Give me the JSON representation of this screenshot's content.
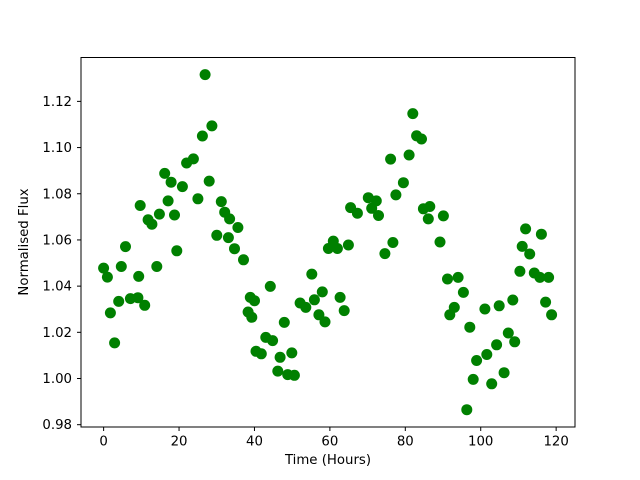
{
  "figure": {
    "background": "#ffffff"
  },
  "chart_data": {
    "type": "scatter",
    "title": "",
    "xlabel": "Time (Hours)",
    "ylabel": "Normalised Flux",
    "marker_color": "#008000",
    "marker_shape": "circle",
    "grid": false,
    "legend_position": "none",
    "xlim": [
      -6.0,
      125.0
    ],
    "ylim": [
      0.979,
      1.139
    ],
    "x_tick_values": [
      0,
      20,
      40,
      60,
      80,
      100,
      120
    ],
    "x_tick_labels": [
      "0",
      "20",
      "40",
      "60",
      "80",
      "100",
      "120"
    ],
    "y_tick_values": [
      0.98,
      1.0,
      1.02,
      1.04,
      1.06,
      1.08,
      1.1,
      1.12
    ],
    "y_tick_labels": [
      "0.98",
      "1.00",
      "1.02",
      "1.04",
      "1.06",
      "1.08",
      "1.10",
      "1.12"
    ],
    "points": [
      [
        0.0,
        1.0478
      ],
      [
        1.0,
        1.0439
      ],
      [
        1.8,
        1.0284
      ],
      [
        2.9,
        1.0154
      ],
      [
        4.0,
        1.0334
      ],
      [
        4.7,
        1.0485
      ],
      [
        5.8,
        1.0571
      ],
      [
        7.1,
        1.0346
      ],
      [
        9.1,
        1.035
      ],
      [
        9.3,
        1.0442
      ],
      [
        9.7,
        1.0749
      ],
      [
        10.9,
        1.0317
      ],
      [
        11.8,
        1.0687
      ],
      [
        12.8,
        1.0668
      ],
      [
        14.1,
        1.0485
      ],
      [
        14.8,
        1.0712
      ],
      [
        16.2,
        1.0888
      ],
      [
        17.1,
        1.0769
      ],
      [
        17.9,
        1.085
      ],
      [
        18.8,
        1.0708
      ],
      [
        19.4,
        1.0553
      ],
      [
        20.9,
        1.0831
      ],
      [
        22.0,
        1.0933
      ],
      [
        23.8,
        1.0951
      ],
      [
        25.0,
        1.0778
      ],
      [
        26.2,
        1.105
      ],
      [
        26.9,
        1.1316
      ],
      [
        28.0,
        1.0855
      ],
      [
        28.7,
        1.1094
      ],
      [
        30.0,
        1.062
      ],
      [
        31.2,
        1.0766
      ],
      [
        32.1,
        1.072
      ],
      [
        33.1,
        1.061
      ],
      [
        33.4,
        1.0691
      ],
      [
        34.7,
        1.0562
      ],
      [
        35.6,
        1.0654
      ],
      [
        37.1,
        1.0514
      ],
      [
        38.3,
        1.0288
      ],
      [
        38.9,
        1.0351
      ],
      [
        39.3,
        1.0265
      ],
      [
        40.0,
        1.0337
      ],
      [
        40.4,
        1.0118
      ],
      [
        41.8,
        1.0107
      ],
      [
        43.0,
        1.0178
      ],
      [
        44.2,
        1.0399
      ],
      [
        44.8,
        1.0164
      ],
      [
        46.2,
        1.0032
      ],
      [
        46.8,
        1.0092
      ],
      [
        47.9,
        1.0243
      ],
      [
        48.8,
        1.0017
      ],
      [
        49.9,
        1.0111
      ],
      [
        50.6,
        1.0014
      ],
      [
        52.1,
        1.0327
      ],
      [
        53.6,
        1.0308
      ],
      [
        55.2,
        1.0452
      ],
      [
        55.9,
        1.0341
      ],
      [
        57.1,
        1.0276
      ],
      [
        58.0,
        1.0375
      ],
      [
        58.7,
        1.0245
      ],
      [
        59.6,
        1.0563
      ],
      [
        60.9,
        1.0595
      ],
      [
        62.0,
        1.0563
      ],
      [
        62.7,
        1.0351
      ],
      [
        63.8,
        1.0294
      ],
      [
        64.9,
        1.0578
      ],
      [
        65.5,
        1.074
      ],
      [
        67.3,
        1.0716
      ],
      [
        70.2,
        1.0783
      ],
      [
        71.1,
        1.0737
      ],
      [
        72.3,
        1.0769
      ],
      [
        72.9,
        1.0706
      ],
      [
        74.6,
        1.0541
      ],
      [
        76.1,
        1.095
      ],
      [
        76.7,
        1.0589
      ],
      [
        77.5,
        1.0795
      ],
      [
        79.5,
        1.0848
      ],
      [
        81.0,
        1.0968
      ],
      [
        82.0,
        1.1147
      ],
      [
        83.0,
        1.1051
      ],
      [
        84.3,
        1.1037
      ],
      [
        84.8,
        1.0735
      ],
      [
        86.1,
        1.0691
      ],
      [
        86.5,
        1.0745
      ],
      [
        89.2,
        1.0591
      ],
      [
        90.1,
        1.0704
      ],
      [
        91.2,
        1.0431
      ],
      [
        91.8,
        1.0276
      ],
      [
        93.0,
        1.0308
      ],
      [
        94.0,
        1.0438
      ],
      [
        95.4,
        1.0373
      ],
      [
        96.3,
        0.9865
      ],
      [
        97.1,
        1.0222
      ],
      [
        98.0,
        0.9996
      ],
      [
        98.9,
        1.0078
      ],
      [
        101.1,
        1.0301
      ],
      [
        101.6,
        1.0104
      ],
      [
        102.9,
        0.9977
      ],
      [
        104.2,
        1.0146
      ],
      [
        104.9,
        1.0315
      ],
      [
        106.2,
        1.0025
      ],
      [
        107.3,
        1.0197
      ],
      [
        108.5,
        1.034
      ],
      [
        109.0,
        1.0159
      ],
      [
        110.4,
        1.0464
      ],
      [
        111.0,
        1.0572
      ],
      [
        111.9,
        1.0648
      ],
      [
        113.0,
        1.0539
      ],
      [
        114.2,
        1.0457
      ],
      [
        115.7,
        1.0438
      ],
      [
        116.1,
        1.0625
      ],
      [
        117.2,
        1.0331
      ],
      [
        118.0,
        1.0438
      ],
      [
        118.8,
        1.0276
      ]
    ]
  }
}
